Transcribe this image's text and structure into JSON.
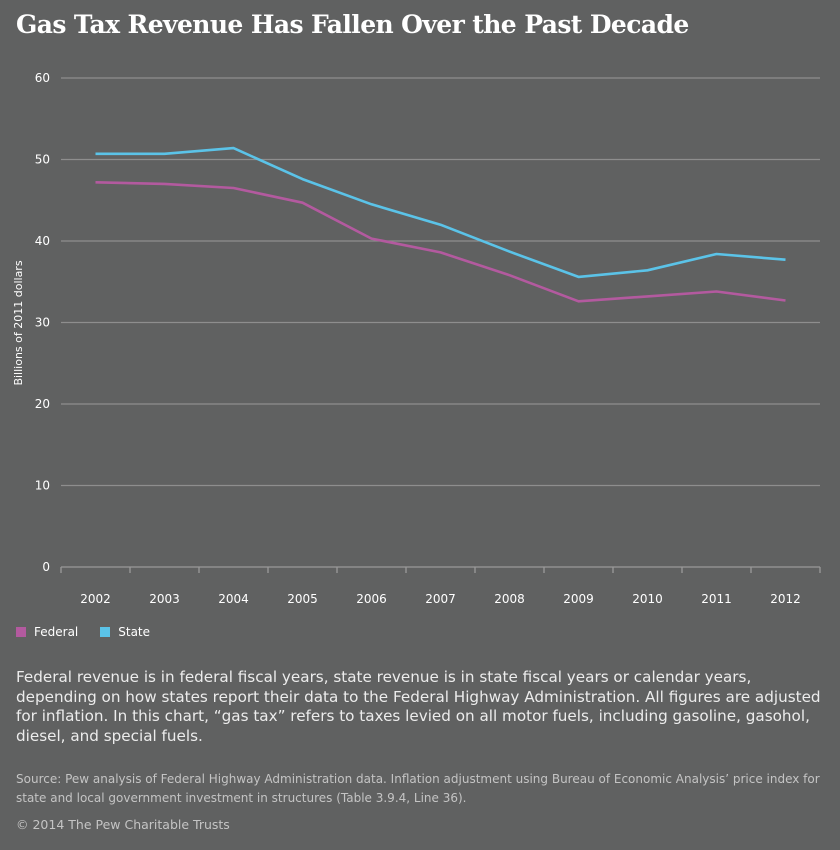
{
  "chart_data": {
    "type": "line",
    "title": "Gas Tax Revenue Has Fallen Over the Past Decade",
    "xlabel": "",
    "ylabel": "Billions of 2011 dollars",
    "categories": [
      "2002",
      "2003",
      "2004",
      "2005",
      "2006",
      "2007",
      "2008",
      "2009",
      "2010",
      "2011",
      "2012"
    ],
    "ylim": [
      0,
      60
    ],
    "yticks": [
      "0",
      "10",
      "20",
      "30",
      "40",
      "50",
      "60"
    ],
    "grid": true,
    "legend_position": "bottom-left",
    "series": [
      {
        "name": "Federal",
        "color": "#b35a9f",
        "values": [
          47.2,
          47.0,
          46.5,
          44.7,
          40.3,
          38.6,
          35.8,
          32.6,
          33.2,
          33.8,
          32.7
        ]
      },
      {
        "name": "State",
        "color": "#5bc3e8",
        "values": [
          50.7,
          50.7,
          51.4,
          47.6,
          44.5,
          42.0,
          38.7,
          35.6,
          36.4,
          38.4,
          37.7
        ]
      }
    ]
  },
  "note": "Federal revenue is in federal fiscal years, state revenue is in state fiscal years or calendar years, depending on how states report their data to the Federal Highway Administration. All figures are adjusted for inflation. In this chart, “gas tax” refers to taxes levied on all motor fuels, including gasoline, gasohol, diesel, and special fuels.",
  "source": "Source: Pew analysis of Federal Highway Administration data. Inflation adjustment using Bureau of Economic Analysis’ price index for state and local government investment in structures (Table 3.9.4, Line 36).",
  "copyright": "© 2014 The Pew Charitable Trusts"
}
